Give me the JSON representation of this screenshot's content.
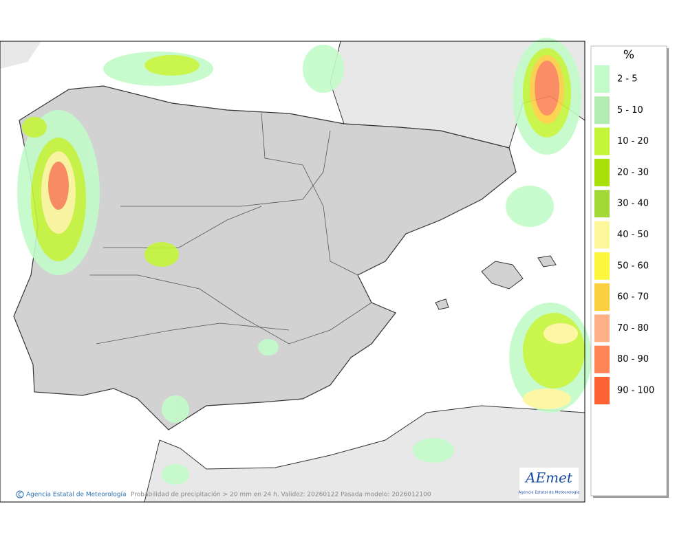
{
  "legend": {
    "title": "%",
    "items": [
      {
        "label": "2 - 5",
        "color": "#c2fbc9"
      },
      {
        "label": "5 - 10",
        "color": "#b2ecb2"
      },
      {
        "label": "10 - 20",
        "color": "#c4f53a"
      },
      {
        "label": "20 - 30",
        "color": "#a9e00a"
      },
      {
        "label": "30 - 40",
        "color": "#a2d838"
      },
      {
        "label": "40 - 50",
        "color": "#fdf79c"
      },
      {
        "label": "50 - 60",
        "color": "#fcf640"
      },
      {
        "label": "60 - 70",
        "color": "#fdcf42"
      },
      {
        "label": "70 - 80",
        "color": "#fdaf86"
      },
      {
        "label": "80 - 90",
        "color": "#fc8457"
      },
      {
        "label": "90 - 100",
        "color": "#fc6233"
      }
    ]
  },
  "footer": {
    "credit": "Agencia Estatal de Meteorología",
    "caption": "Probabilidad de precipitación > 20 mm en 24 h. Validez: 20260122 Pasada modelo: 2026012100"
  },
  "logo": {
    "name": "AEmet",
    "subtitle": "Agencia Estatal de Meteorología"
  }
}
